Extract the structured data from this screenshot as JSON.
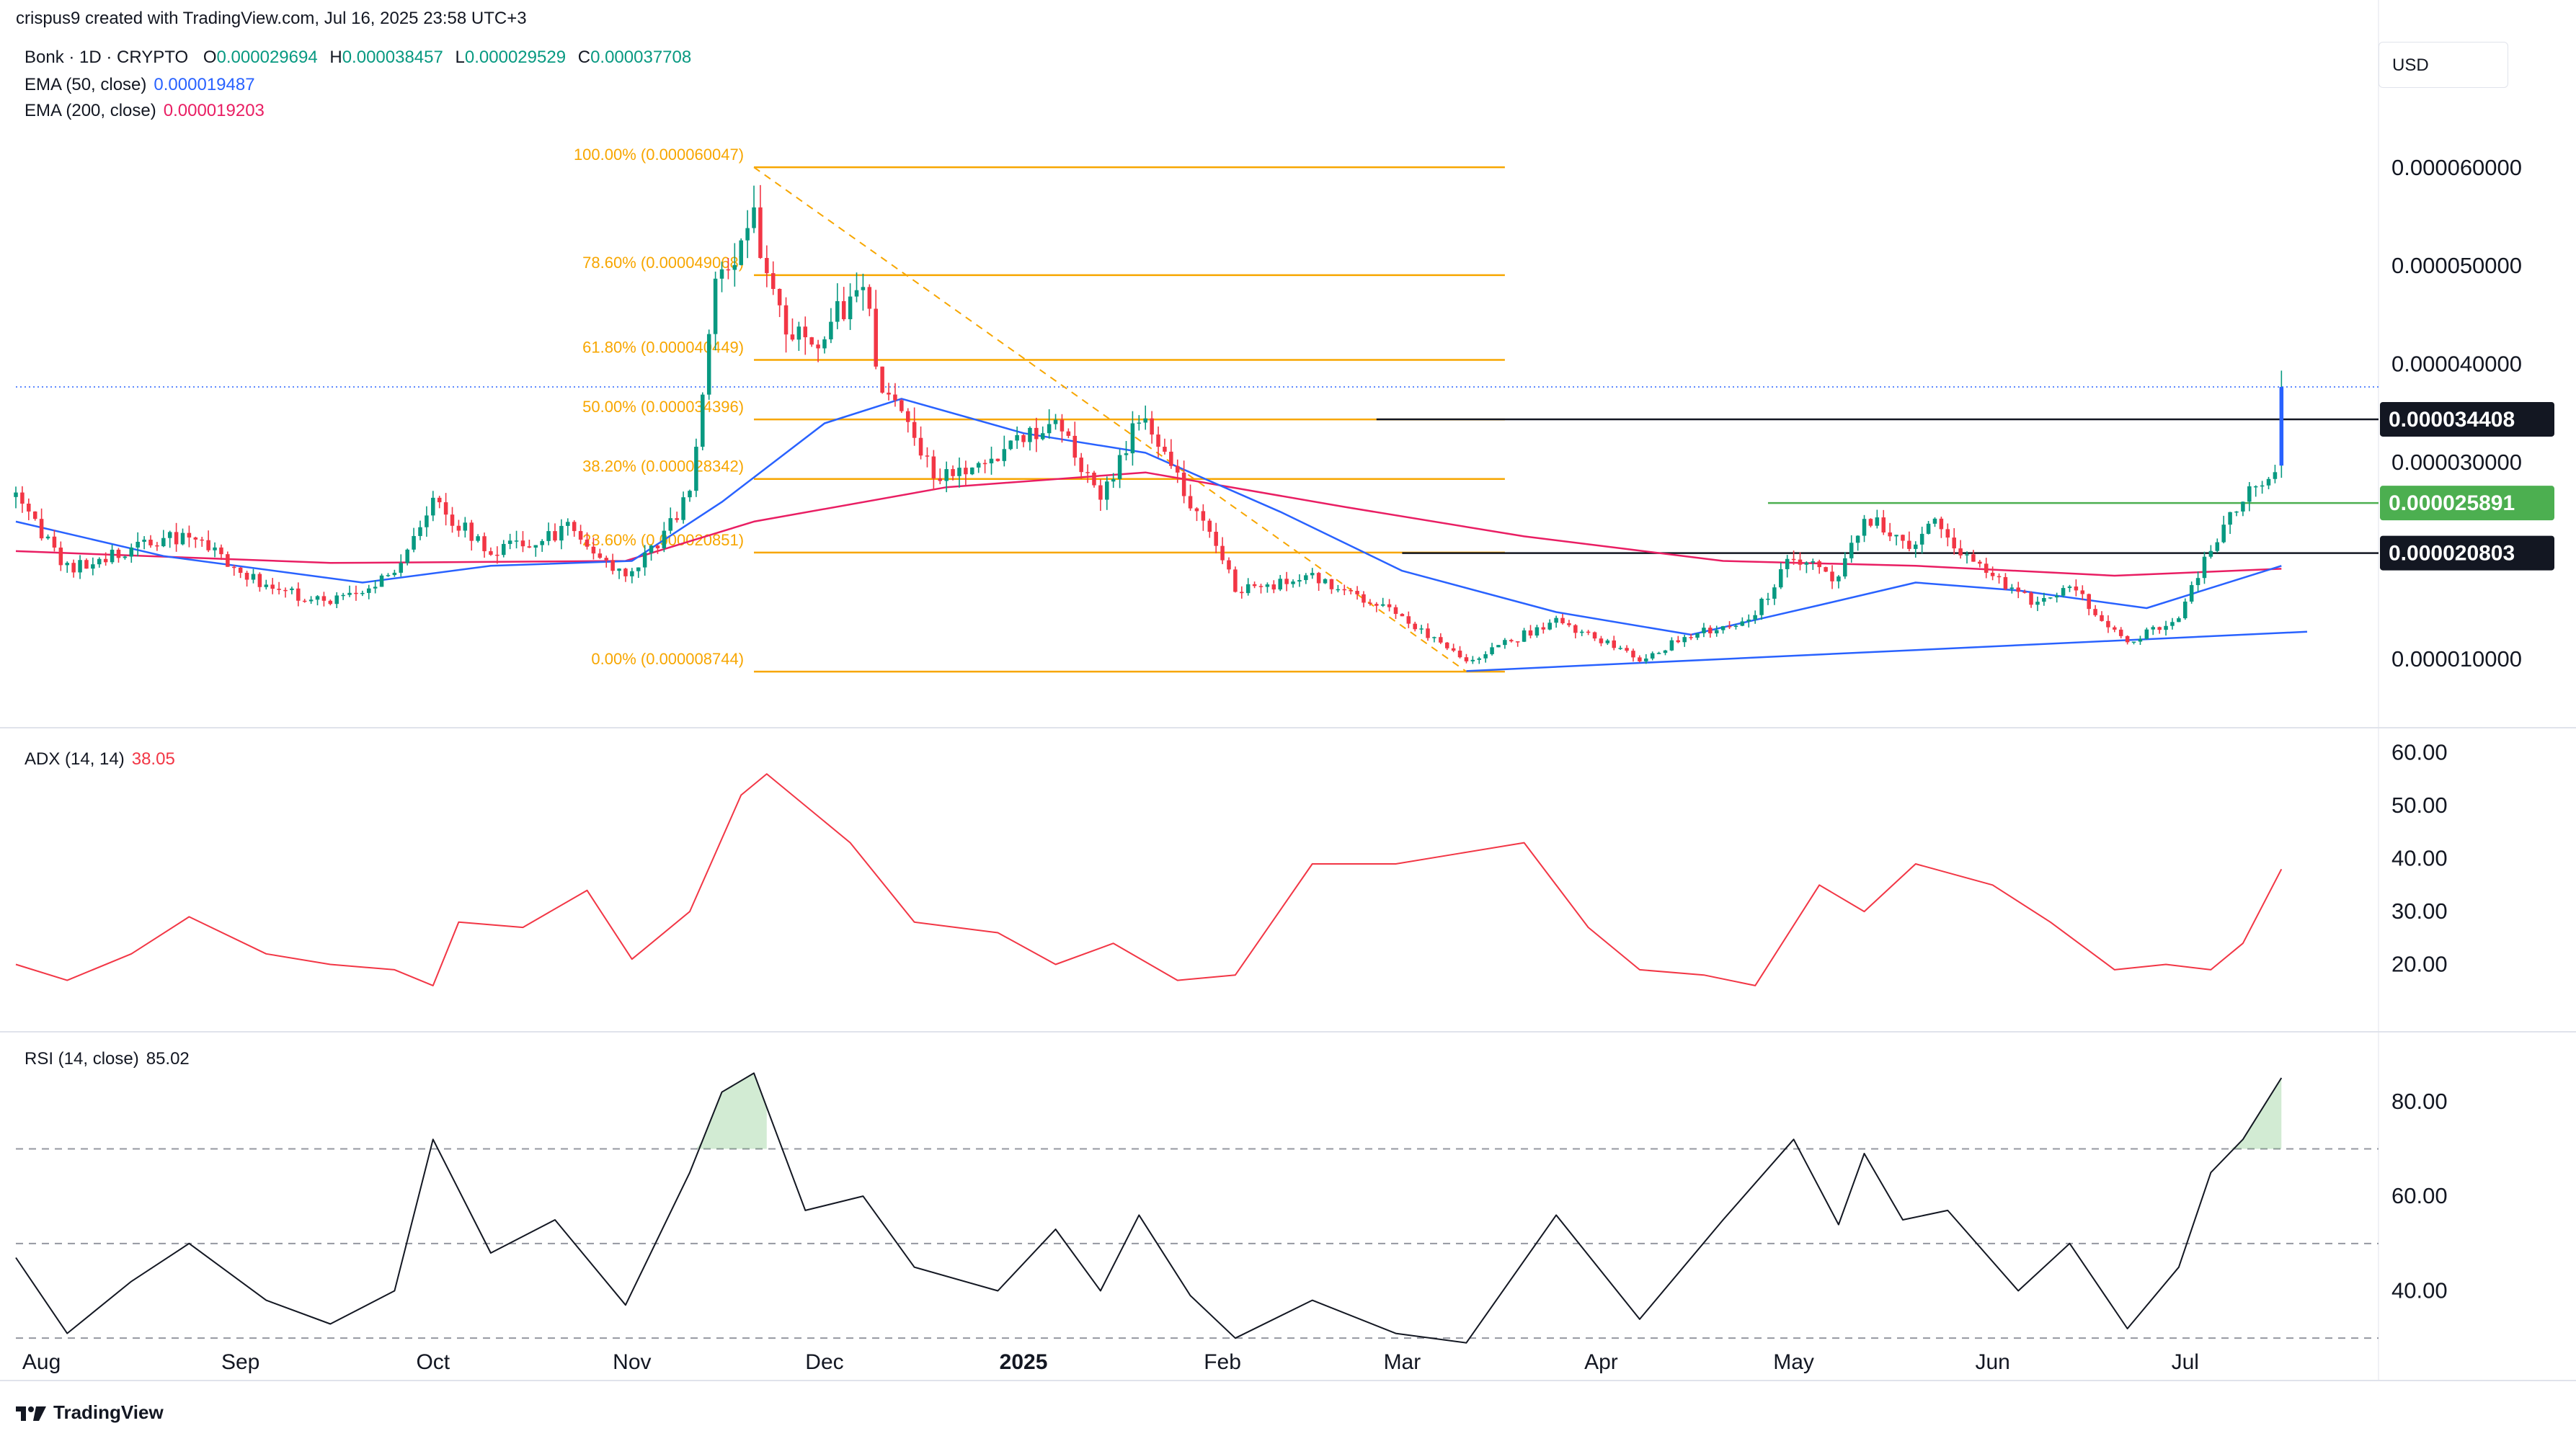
{
  "header": {
    "author_line": "crispus9 created with TradingView.com, Jul 16, 2025 23:58 UTC+3"
  },
  "symbol": {
    "name": "Bonk · 1D · CRYPTO",
    "open_label": "O",
    "open": "0.000029694",
    "high_label": "H",
    "high": "0.000038457",
    "low_label": "L",
    "low": "0.000029529",
    "close_label": "C",
    "close": "0.000037708"
  },
  "indicators": {
    "ema50": {
      "label": "EMA (50, close)",
      "value": "0.000019487",
      "color": "#2962ff"
    },
    "ema200": {
      "label": "EMA (200, close)",
      "value": "0.000019203",
      "color": "#e91e63"
    },
    "adx": {
      "label": "ADX (14, 14)",
      "value": "38.05",
      "color": "#f23645"
    },
    "rsi": {
      "label": "RSI (14, close)",
      "value": "85.02",
      "color": "#131722"
    }
  },
  "currency": "USD",
  "footer": {
    "brand": "TradingView",
    "logo": "tradingview-logo-icon"
  },
  "colors": {
    "up": "#089981",
    "down": "#f23645",
    "fib": "#f7a600",
    "green_level": "#4caf50",
    "trend": "#2962ff",
    "last_price": "#2962ff"
  },
  "chart_data": [
    {
      "type": "candlestick",
      "title": "Bonk · 1D · CRYPTO",
      "ylim": [
        4.5e-06,
        6.68e-05
      ],
      "y_ticks": [
        {
          "value": 6e-05,
          "label": "0.000060000"
        },
        {
          "value": 5e-05,
          "label": "0.000050000"
        },
        {
          "value": 4e-05,
          "label": "0.000040000"
        },
        {
          "value": 3e-05,
          "label": "0.000030000"
        },
        {
          "value": 1e-05,
          "label": "0.000010000"
        }
      ],
      "x_labels": [
        {
          "date": "2024-08-01",
          "label": "Aug"
        },
        {
          "date": "2024-09-01",
          "label": "Sep"
        },
        {
          "date": "2024-10-01",
          "label": "Oct"
        },
        {
          "date": "2024-11-01",
          "label": "Nov"
        },
        {
          "date": "2024-12-01",
          "label": "Dec"
        },
        {
          "date": "2025-01-01",
          "label": "2025",
          "bold": true
        },
        {
          "date": "2025-02-01",
          "label": "Feb"
        },
        {
          "date": "2025-03-01",
          "label": "Mar"
        },
        {
          "date": "2025-04-01",
          "label": "Apr"
        },
        {
          "date": "2025-05-01",
          "label": "May"
        },
        {
          "date": "2025-06-01",
          "label": "Jun"
        },
        {
          "date": "2025-07-01",
          "label": "Jul"
        }
      ],
      "price_path": [
        [
          "2024-07-28",
          2.65e-05
        ],
        [
          "2024-08-05",
          1.92e-05
        ],
        [
          "2024-08-15",
          2.12e-05
        ],
        [
          "2024-08-24",
          2.28e-05
        ],
        [
          "2024-09-05",
          1.72e-05
        ],
        [
          "2024-09-15",
          1.58e-05
        ],
        [
          "2024-09-25",
          1.88e-05
        ],
        [
          "2024-10-01",
          2.58e-05
        ],
        [
          "2024-10-10",
          2.1e-05
        ],
        [
          "2024-10-22",
          2.32e-05
        ],
        [
          "2024-10-31",
          1.85e-05
        ],
        [
          "2024-11-05",
          2.15e-05
        ],
        [
          "2024-11-10",
          2.68e-05
        ],
        [
          "2024-11-14",
          4.85e-05
        ],
        [
          "2024-11-20",
          5.45e-05
        ],
        [
          "2024-11-24",
          4.5e-05
        ],
        [
          "2024-11-28",
          4.18e-05
        ],
        [
          "2024-12-07",
          4.78e-05
        ],
        [
          "2024-12-10",
          3.78e-05
        ],
        [
          "2024-12-18",
          2.85e-05
        ],
        [
          "2024-12-28",
          3.05e-05
        ],
        [
          "2025-01-06",
          3.45e-05
        ],
        [
          "2025-01-13",
          2.62e-05
        ],
        [
          "2025-01-19",
          3.45e-05
        ],
        [
          "2025-01-27",
          2.62e-05
        ],
        [
          "2025-02-03",
          1.72e-05
        ],
        [
          "2025-02-15",
          1.82e-05
        ],
        [
          "2025-02-28",
          1.45e-05
        ],
        [
          "2025-03-11",
          9.8e-06
        ],
        [
          "2025-03-25",
          1.4e-05
        ],
        [
          "2025-04-07",
          1e-05
        ],
        [
          "2025-04-15",
          1.25e-05
        ],
        [
          "2025-04-24",
          1.38e-05
        ],
        [
          "2025-05-01",
          2.05e-05
        ],
        [
          "2025-05-08",
          1.8e-05
        ],
        [
          "2025-05-12",
          2.5e-05
        ],
        [
          "2025-05-18",
          2.15e-05
        ],
        [
          "2025-05-23",
          2.35e-05
        ],
        [
          "2025-06-01",
          1.85e-05
        ],
        [
          "2025-06-07",
          1.58e-05
        ],
        [
          "2025-06-13",
          1.75e-05
        ],
        [
          "2025-06-22",
          1.18e-05
        ],
        [
          "2025-06-30",
          1.42e-05
        ],
        [
          "2025-07-05",
          2.12e-05
        ],
        [
          "2025-07-10",
          2.65e-05
        ],
        [
          "2025-07-15",
          2.96e-05
        ],
        [
          "2025-07-16",
          3.77e-05
        ]
      ],
      "ema50": [
        [
          "2024-07-28",
          2.4e-05
        ],
        [
          "2024-08-20",
          2.05e-05
        ],
        [
          "2024-09-20",
          1.78e-05
        ],
        [
          "2024-10-10",
          1.95e-05
        ],
        [
          "2024-11-01",
          2e-05
        ],
        [
          "2024-11-15",
          2.6e-05
        ],
        [
          "2024-12-01",
          3.4e-05
        ],
        [
          "2024-12-13",
          3.65e-05
        ],
        [
          "2025-01-01",
          3.3e-05
        ],
        [
          "2025-01-20",
          3.1e-05
        ],
        [
          "2025-02-10",
          2.5e-05
        ],
        [
          "2025-03-01",
          1.9e-05
        ],
        [
          "2025-03-25",
          1.48e-05
        ],
        [
          "2025-04-15",
          1.25e-05
        ],
        [
          "2025-05-05",
          1.55e-05
        ],
        [
          "2025-05-20",
          1.78e-05
        ],
        [
          "2025-06-05",
          1.7e-05
        ],
        [
          "2025-06-25",
          1.52e-05
        ],
        [
          "2025-07-16",
          1.95e-05
        ]
      ],
      "ema200": [
        [
          "2024-07-28",
          2.1e-05
        ],
        [
          "2024-09-15",
          1.98e-05
        ],
        [
          "2024-10-31",
          2e-05
        ],
        [
          "2024-11-20",
          2.4e-05
        ],
        [
          "2024-12-20",
          2.75e-05
        ],
        [
          "2025-01-20",
          2.9e-05
        ],
        [
          "2025-02-20",
          2.55e-05
        ],
        [
          "2025-03-20",
          2.25e-05
        ],
        [
          "2025-04-20",
          2e-05
        ],
        [
          "2025-05-20",
          1.95e-05
        ],
        [
          "2025-06-20",
          1.85e-05
        ],
        [
          "2025-07-16",
          1.92e-05
        ]
      ],
      "fib_levels": [
        {
          "label": "100.00% (0.000060047)",
          "value": 6.0047e-05
        },
        {
          "label": "78.60% (0.000049068)",
          "value": 4.9068e-05
        },
        {
          "label": "61.80% (0.000040449)",
          "value": 4.0449e-05
        },
        {
          "label": "50.00% (0.000034396)",
          "value": 3.4396e-05
        },
        {
          "label": "38.20% (0.000028342)",
          "value": 2.8342e-05
        },
        {
          "label": "23.60% (0.000020851)",
          "value": 2.0851e-05
        },
        {
          "label": "0.00% (0.000008744)",
          "value": 8.744e-06
        }
      ],
      "horizontal_levels": [
        {
          "value": 3.4408e-05,
          "label": "0.000034408",
          "style": "black"
        },
        {
          "value": 2.5891e-05,
          "label": "0.000025891",
          "style": "green"
        },
        {
          "value": 2.0803e-05,
          "label": "0.000020803",
          "style": "black"
        }
      ],
      "trendline": [
        [
          "2025-03-11",
          8.8e-06
        ],
        [
          "2025-07-20",
          1.28e-05
        ]
      ],
      "fib_diagonal": [
        [
          "2024-11-20",
          6.0047e-05
        ],
        [
          "2025-03-11",
          8.744e-06
        ]
      ],
      "last_price": 3.77e-05
    },
    {
      "type": "line",
      "title": "ADX (14, 14)",
      "ylim": [
        10,
        62
      ],
      "y_ticks": [
        60,
        50,
        40,
        30,
        20
      ],
      "y_tick_labels": [
        "60.00",
        "50.00",
        "40.00",
        "30.00",
        "20.00"
      ],
      "series": [
        {
          "name": "ADX (14, 14)",
          "points": [
            [
              "2024-07-28",
              20
            ],
            [
              "2024-08-05",
              17
            ],
            [
              "2024-08-15",
              22
            ],
            [
              "2024-08-24",
              29
            ],
            [
              "2024-09-05",
              22
            ],
            [
              "2024-09-15",
              20
            ],
            [
              "2024-09-25",
              19
            ],
            [
              "2024-10-01",
              16
            ],
            [
              "2024-10-05",
              28
            ],
            [
              "2024-10-15",
              27
            ],
            [
              "2024-10-25",
              34
            ],
            [
              "2024-11-01",
              21
            ],
            [
              "2024-11-10",
              30
            ],
            [
              "2024-11-18",
              52
            ],
            [
              "2024-11-22",
              56
            ],
            [
              "2024-12-05",
              43
            ],
            [
              "2024-12-15",
              28
            ],
            [
              "2024-12-28",
              26
            ],
            [
              "2025-01-06",
              20
            ],
            [
              "2025-01-15",
              24
            ],
            [
              "2025-01-25",
              17
            ],
            [
              "2025-02-03",
              18
            ],
            [
              "2025-02-15",
              39
            ],
            [
              "2025-02-28",
              39
            ],
            [
              "2025-03-10",
              41
            ],
            [
              "2025-03-20",
              43
            ],
            [
              "2025-03-30",
              27
            ],
            [
              "2025-04-07",
              19
            ],
            [
              "2025-04-17",
              18
            ],
            [
              "2025-04-25",
              16
            ],
            [
              "2025-05-05",
              35
            ],
            [
              "2025-05-12",
              30
            ],
            [
              "2025-05-20",
              39
            ],
            [
              "2025-06-01",
              35
            ],
            [
              "2025-06-10",
              28
            ],
            [
              "2025-06-20",
              19
            ],
            [
              "2025-06-28",
              20
            ],
            [
              "2025-07-05",
              19
            ],
            [
              "2025-07-10",
              24
            ],
            [
              "2025-07-16",
              38
            ]
          ]
        }
      ]
    },
    {
      "type": "line",
      "title": "RSI (14, close)",
      "ylim": [
        25,
        92
      ],
      "y_ticks": [
        80,
        60,
        40
      ],
      "y_tick_labels": [
        "80.00",
        "60.00",
        "40.00"
      ],
      "bands": [
        70,
        50,
        30
      ],
      "series": [
        {
          "name": "RSI (14, close)",
          "points": [
            [
              "2024-07-28",
              47
            ],
            [
              "2024-08-05",
              31
            ],
            [
              "2024-08-15",
              42
            ],
            [
              "2024-08-24",
              50
            ],
            [
              "2024-09-05",
              38
            ],
            [
              "2024-09-15",
              33
            ],
            [
              "2024-09-25",
              40
            ],
            [
              "2024-10-01",
              72
            ],
            [
              "2024-10-10",
              48
            ],
            [
              "2024-10-20",
              55
            ],
            [
              "2024-10-31",
              37
            ],
            [
              "2024-11-10",
              65
            ],
            [
              "2024-11-15",
              82
            ],
            [
              "2024-11-20",
              86
            ],
            [
              "2024-11-28",
              57
            ],
            [
              "2024-12-07",
              60
            ],
            [
              "2024-12-15",
              45
            ],
            [
              "2024-12-28",
              40
            ],
            [
              "2025-01-06",
              53
            ],
            [
              "2025-01-13",
              40
            ],
            [
              "2025-01-19",
              56
            ],
            [
              "2025-01-27",
              39
            ],
            [
              "2025-02-03",
              30
            ],
            [
              "2025-02-15",
              38
            ],
            [
              "2025-02-28",
              31
            ],
            [
              "2025-03-11",
              29
            ],
            [
              "2025-03-25",
              56
            ],
            [
              "2025-04-07",
              34
            ],
            [
              "2025-04-20",
              55
            ],
            [
              "2025-05-01",
              72
            ],
            [
              "2025-05-08",
              54
            ],
            [
              "2025-05-12",
              69
            ],
            [
              "2025-05-18",
              55
            ],
            [
              "2025-05-25",
              57
            ],
            [
              "2025-06-05",
              40
            ],
            [
              "2025-06-13",
              50
            ],
            [
              "2025-06-22",
              32
            ],
            [
              "2025-06-30",
              45
            ],
            [
              "2025-07-05",
              65
            ],
            [
              "2025-07-10",
              72
            ],
            [
              "2025-07-16",
              85
            ]
          ]
        }
      ]
    }
  ]
}
